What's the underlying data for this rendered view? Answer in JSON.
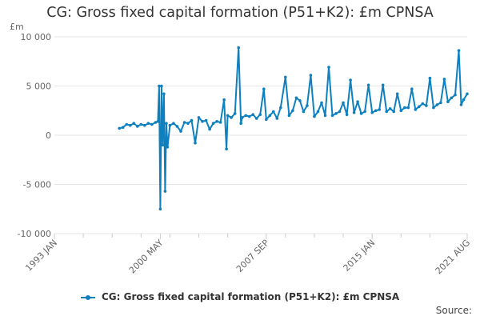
{
  "title": "CG: Gross fixed capital formation (P51+K2): £m CPNSA",
  "colors": {
    "series": "#0e80c0",
    "grid": "#e6e6e6",
    "axis_text": "#666666"
  },
  "legend": {
    "label": "CG: Gross fixed capital formation (P51+K2): £m CPNSA"
  },
  "source_label": "Source:",
  "chart_data": {
    "type": "line",
    "title": "CG: Gross fixed capital formation (P51+K2): £m CPNSA",
    "yunit": "£m",
    "xlabel": "",
    "ylabel": "",
    "ylim": [
      -10000,
      10000
    ],
    "yticks": [
      -10000,
      -5000,
      0,
      5000,
      10000
    ],
    "ytick_labels": [
      "-10 000",
      "-5 000",
      "0",
      "5 000",
      "10 000"
    ],
    "xlim": [
      "1993-01",
      "2021-08"
    ],
    "xticks": [
      "1993-01",
      "2000-05",
      "2007-09",
      "2015-01",
      "2021-08"
    ],
    "xtick_labels": [
      "1993 JAN",
      "2000 MAY",
      "2007 SEP",
      "2015 JAN",
      "2021 AUG"
    ],
    "grid": true,
    "legend_position": "bottom",
    "series": [
      {
        "name": "CG: Gross fixed capital formation (P51+K2): £m CPNSA",
        "points": [
          [
            "1997-07",
            700
          ],
          [
            "1997-10",
            800
          ],
          [
            "1998-01",
            1100
          ],
          [
            "1998-04",
            1000
          ],
          [
            "1998-07",
            1200
          ],
          [
            "1998-10",
            900
          ],
          [
            "1999-01",
            1100
          ],
          [
            "1999-04",
            1000
          ],
          [
            "1999-07",
            1200
          ],
          [
            "1999-10",
            1100
          ],
          [
            "2000-01",
            1300
          ],
          [
            "2000-03",
            1400
          ],
          [
            "2000-04",
            5000
          ],
          [
            "2000-05",
            -7500
          ],
          [
            "2000-06",
            5000
          ],
          [
            "2000-07",
            -1000
          ],
          [
            "2000-08",
            4200
          ],
          [
            "2000-09",
            -5700
          ],
          [
            "2000-10",
            1200
          ],
          [
            "2000-11",
            -1200
          ],
          [
            "2001-01",
            1000
          ],
          [
            "2001-04",
            1200
          ],
          [
            "2001-07",
            900
          ],
          [
            "2001-10",
            400
          ],
          [
            "2002-01",
            1300
          ],
          [
            "2002-04",
            1200
          ],
          [
            "2002-07",
            1500
          ],
          [
            "2002-10",
            -800
          ],
          [
            "2003-01",
            1800
          ],
          [
            "2003-04",
            1400
          ],
          [
            "2003-07",
            1500
          ],
          [
            "2003-10",
            600
          ],
          [
            "2004-01",
            1200
          ],
          [
            "2004-04",
            1400
          ],
          [
            "2004-07",
            1300
          ],
          [
            "2004-10",
            3600
          ],
          [
            "2004-12",
            -1400
          ],
          [
            "2005-01",
            2000
          ],
          [
            "2005-04",
            1800
          ],
          [
            "2005-07",
            2200
          ],
          [
            "2005-10",
            8900
          ],
          [
            "2005-12",
            1200
          ],
          [
            "2006-01",
            1800
          ],
          [
            "2006-04",
            2000
          ],
          [
            "2006-07",
            1900
          ],
          [
            "2006-10",
            2100
          ],
          [
            "2007-01",
            1700
          ],
          [
            "2007-04",
            2100
          ],
          [
            "2007-07",
            4700
          ],
          [
            "2007-09",
            1600
          ],
          [
            "2007-12",
            2000
          ],
          [
            "2008-03",
            2400
          ],
          [
            "2008-06",
            1700
          ],
          [
            "2008-09",
            2800
          ],
          [
            "2009-01",
            5900
          ],
          [
            "2009-04",
            2000
          ],
          [
            "2009-07",
            2500
          ],
          [
            "2009-10",
            3800
          ],
          [
            "2010-01",
            3500
          ],
          [
            "2010-04",
            2400
          ],
          [
            "2010-07",
            3000
          ],
          [
            "2010-10",
            6100
          ],
          [
            "2011-01",
            1900
          ],
          [
            "2011-04",
            2400
          ],
          [
            "2011-07",
            3300
          ],
          [
            "2011-10",
            2000
          ],
          [
            "2012-01",
            6900
          ],
          [
            "2012-04",
            2000
          ],
          [
            "2012-07",
            2200
          ],
          [
            "2012-10",
            2400
          ],
          [
            "2013-01",
            3300
          ],
          [
            "2013-04",
            2100
          ],
          [
            "2013-07",
            5600
          ],
          [
            "2013-10",
            2300
          ],
          [
            "2014-01",
            3400
          ],
          [
            "2014-04",
            2200
          ],
          [
            "2014-07",
            2400
          ],
          [
            "2014-10",
            5100
          ],
          [
            "2015-01",
            2300
          ],
          [
            "2015-04",
            2500
          ],
          [
            "2015-07",
            2600
          ],
          [
            "2015-10",
            5100
          ],
          [
            "2016-01",
            2400
          ],
          [
            "2016-04",
            2700
          ],
          [
            "2016-07",
            2400
          ],
          [
            "2016-10",
            4200
          ],
          [
            "2017-01",
            2500
          ],
          [
            "2017-04",
            2800
          ],
          [
            "2017-07",
            2800
          ],
          [
            "2017-10",
            4700
          ],
          [
            "2018-01",
            2600
          ],
          [
            "2018-04",
            2900
          ],
          [
            "2018-07",
            3200
          ],
          [
            "2018-10",
            3000
          ],
          [
            "2019-01",
            5800
          ],
          [
            "2019-04",
            2800
          ],
          [
            "2019-07",
            3100
          ],
          [
            "2019-10",
            3300
          ],
          [
            "2020-01",
            5700
          ],
          [
            "2020-04",
            3400
          ],
          [
            "2020-07",
            3800
          ],
          [
            "2020-10",
            4100
          ],
          [
            "2021-01",
            8600
          ],
          [
            "2021-03",
            3100
          ],
          [
            "2021-05",
            3600
          ],
          [
            "2021-08",
            4200
          ]
        ]
      }
    ]
  }
}
